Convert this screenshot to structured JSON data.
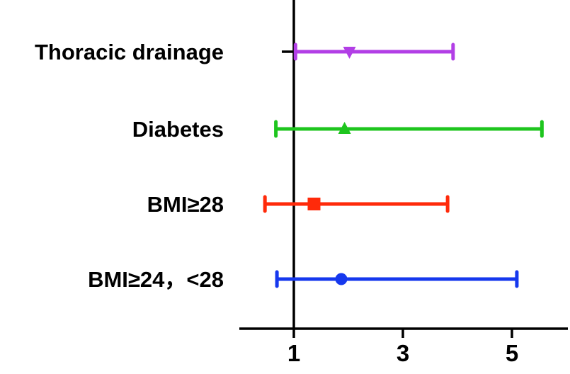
{
  "chart_data": {
    "type": "forest",
    "title": "",
    "xlabel": "",
    "ylabel": "",
    "xlim": [
      0.0,
      6.0
    ],
    "reference_line_x": 1,
    "x_ticks": [
      1,
      3,
      5
    ],
    "x_tick_labels": [
      "1",
      "3",
      "5"
    ],
    "grid": false,
    "rows": [
      {
        "label": "Thoracic drainage",
        "estimate": 2.02,
        "lower": 1.03,
        "upper": 3.92,
        "color": "#b23ee6",
        "marker": "triangle-down"
      },
      {
        "label": "Diabetes",
        "estimate": 1.93,
        "lower": 0.67,
        "upper": 5.55,
        "color": "#1ec51e",
        "marker": "triangle-up"
      },
      {
        "label": "BMI≥28",
        "estimate": 1.37,
        "lower": 0.47,
        "upper": 3.82,
        "color": "#ff2a0a",
        "marker": "square"
      },
      {
        "label": "BMI≥24，<28",
        "estimate": 1.87,
        "lower": 0.69,
        "upper": 5.09,
        "color": "#1638ee",
        "marker": "circle"
      }
    ]
  }
}
